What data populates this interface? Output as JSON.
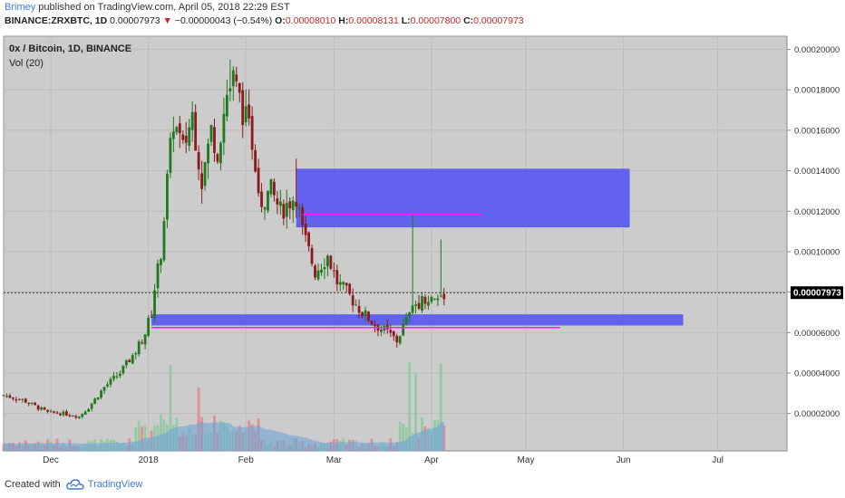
{
  "header": {
    "author": "Brimey",
    "published_text": "published on TradingView.com, April 05, 2018 22:29 EST",
    "symbol": "BINANCE:ZRXBTC, 1D",
    "last": "0.00007973",
    "direction_arrow": "▼",
    "change": "−0.00000043 (−0.54%)",
    "open_label": "O:",
    "open": "0.00008010",
    "high_label": "H:",
    "high": "0.00008131",
    "low_label": "L:",
    "low": "0.00007800",
    "close_label": "C:",
    "close": "0.00007973"
  },
  "footer": {
    "created_with": "Created with",
    "brand": "TradingView",
    "icon": "tradingview-cloud-icon"
  },
  "colors": {
    "background": "#cccccc",
    "up": "#1f7a1f",
    "down": "#8b1a1a",
    "zone": "#5c5cf0",
    "magenta": "#ff1aff",
    "volume_area": "#6fa3d8",
    "vol_up": "#8fcaa0",
    "vol_down": "#e28a8a"
  },
  "chart_data": {
    "type": "candlestick",
    "title": "0x / Bitcoin, 1D, BINANCE",
    "indicator": "Vol (20)",
    "last_price_label": "0.00007973",
    "y_ticks": [
      "0.00002000",
      "0.00004000",
      "0.00006000",
      "0.00008000",
      "0.00010000",
      "0.00012000",
      "0.00014000",
      "0.00016000",
      "0.00018000",
      "0.00020000"
    ],
    "ylim": [
      1.5e-06,
      0.0002065
    ],
    "x_ticks": [
      {
        "label": "Dec",
        "date": "2017-12-01"
      },
      {
        "label": "2018",
        "date": "2018-01-01"
      },
      {
        "label": "Feb",
        "date": "2018-02-01"
      },
      {
        "label": "Mar",
        "date": "2018-03-01"
      },
      {
        "label": "Apr",
        "date": "2018-04-01"
      },
      {
        "label": "May",
        "date": "2018-05-01"
      },
      {
        "label": "Jun",
        "date": "2018-06-01"
      },
      {
        "label": "Jul",
        "date": "2018-07-01"
      }
    ],
    "xlim": [
      "2017-11-16",
      "2018-07-23"
    ],
    "price_path": [
      [
        "2017-11-16",
        2.9e-05
      ],
      [
        "2017-11-22",
        2.68e-05
      ],
      [
        "2017-11-30",
        2.05e-05
      ],
      [
        "2017-12-05",
        2e-05
      ],
      [
        "2017-12-10",
        1.85e-05
      ],
      [
        "2017-12-13",
        2.3e-05
      ],
      [
        "2017-12-18",
        3.3e-05
      ],
      [
        "2017-12-23",
        4e-05
      ],
      [
        "2017-12-28",
        5.1e-05
      ],
      [
        "2017-12-31",
        6e-05
      ],
      [
        "2018-01-02",
        7e-05
      ],
      [
        "2018-01-03",
        8.2e-05
      ],
      [
        "2018-01-05",
        0.0001
      ],
      [
        "2018-01-07",
        0.000135
      ],
      [
        "2018-01-09",
        0.000165
      ],
      [
        "2018-01-12",
        0.00015
      ],
      [
        "2018-01-15",
        0.000168
      ],
      [
        "2018-01-18",
        0.000135
      ],
      [
        "2018-01-21",
        0.00016
      ],
      [
        "2018-01-23",
        0.00015
      ],
      [
        "2018-01-26",
        0.000178
      ],
      [
        "2018-01-28",
        0.000185
      ],
      [
        "2018-01-31",
        0.00017
      ],
      [
        "2018-02-03",
        0.000155
      ],
      [
        "2018-02-06",
        0.000125
      ],
      [
        "2018-02-09",
        0.00013
      ],
      [
        "2018-02-12",
        0.00012
      ],
      [
        "2018-02-15",
        0.000125
      ],
      [
        "2018-02-17",
        0.000128
      ],
      [
        "2018-02-19",
        0.00011
      ],
      [
        "2018-02-23",
        9e-05
      ],
      [
        "2018-02-27",
        9.8e-05
      ],
      [
        "2018-03-02",
        8.5e-05
      ],
      [
        "2018-03-06",
        7.8e-05
      ],
      [
        "2018-03-10",
        7e-05
      ],
      [
        "2018-03-14",
        6.4e-05
      ],
      [
        "2018-03-18",
        6e-05
      ],
      [
        "2018-03-21",
        5.6e-05
      ],
      [
        "2018-03-24",
        6.6e-05
      ],
      [
        "2018-03-27",
        7.4e-05
      ],
      [
        "2018-03-30",
        7.7e-05
      ],
      [
        "2018-04-02",
        7.6e-05
      ],
      [
        "2018-04-05",
        7.97e-05
      ]
    ],
    "spikes": [
      {
        "date": "2018-01-27",
        "high": 0.000195
      },
      {
        "date": "2018-02-17",
        "high": 0.000146
      },
      {
        "date": "2018-03-26",
        "high": 0.000118
      },
      {
        "date": "2018-04-04",
        "high": 0.000106
      }
    ],
    "zones": [
      {
        "from": "2018-02-17",
        "to": "2018-06-03",
        "low": 0.000112,
        "high": 0.000141
      },
      {
        "from": "2018-01-02",
        "to": "2018-06-20",
        "low": 6.35e-05,
        "high": 6.9e-05
      }
    ],
    "lines": [
      {
        "from": "2018-02-19",
        "to": "2018-04-17",
        "value": 0.0001185
      },
      {
        "from": "2018-01-02",
        "to": "2018-05-12",
        "value": 6.25e-05
      }
    ]
  }
}
